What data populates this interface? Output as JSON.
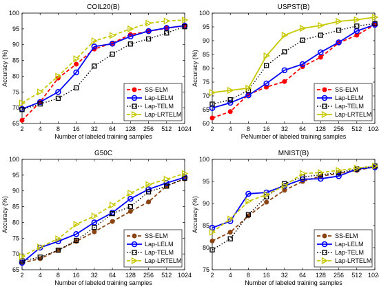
{
  "chart_data": [
    {
      "type": "line",
      "title": "COIL20(B)",
      "xlabel": "Number of labeled training samples",
      "ylabel": "Accuracy (%)",
      "categories": [
        "2",
        "4",
        "8",
        "16",
        "32",
        "64",
        "128",
        "256",
        "512",
        "1024"
      ],
      "ylim": [
        65,
        100
      ],
      "yticks": [
        65,
        70,
        75,
        80,
        85,
        90,
        95,
        100
      ],
      "legend_position": "lower-right",
      "series": [
        {
          "name": "SS-ELM",
          "color": "#ff0000",
          "dash": "dashed",
          "marker": "dot",
          "values": [
            66,
            71.8,
            79.4,
            83.8,
            88.6,
            90.5,
            93.2,
            94.2,
            95.2,
            96
          ]
        },
        {
          "name": "Lap-LELM",
          "color": "#0000ff",
          "dash": "solid",
          "marker": "circle",
          "values": [
            69.6,
            71.8,
            75,
            81.2,
            89.4,
            90.3,
            92.6,
            94.3,
            95.3,
            96
          ]
        },
        {
          "name": "Lap-TELM",
          "color": "#000000",
          "dash": "dotted",
          "marker": "square",
          "values": [
            69.4,
            71.2,
            73,
            76.3,
            83.2,
            87,
            90.2,
            91.8,
            93.7,
            95.7
          ]
        },
        {
          "name": "Lap-LRTELM",
          "color": "#c8c800",
          "dash": "dashed",
          "marker": "triangle",
          "values": [
            71.5,
            75,
            80,
            85.5,
            91.2,
            92.9,
            95,
            96.8,
            97.5,
            97.8
          ]
        }
      ]
    },
    {
      "type": "line",
      "title": "USPST(B)",
      "xlabel": "PeNumber of labeled training samples",
      "ylabel": "Accuracy (%)",
      "categories": [
        "2",
        "4",
        "8",
        "16",
        "32",
        "64",
        "128",
        "256",
        "512",
        "1024"
      ],
      "ylim": [
        60,
        100
      ],
      "yticks": [
        60,
        65,
        70,
        75,
        80,
        85,
        90,
        95,
        100
      ],
      "legend_position": "lower-right",
      "series": [
        {
          "name": "SS-ELM",
          "color": "#ff0000",
          "dash": "dashed",
          "marker": "dot",
          "values": [
            62,
            64.3,
            70.5,
            73.2,
            75.2,
            80.6,
            84,
            89.2,
            92,
            95.8
          ]
        },
        {
          "name": "Lap-LELM",
          "color": "#0000ff",
          "dash": "solid",
          "marker": "circle",
          "values": [
            65.6,
            67.5,
            70.2,
            74.5,
            79.3,
            81.5,
            85.8,
            89.4,
            93.5,
            95.8
          ]
        },
        {
          "name": "Lap-TELM",
          "color": "#000000",
          "dash": "dotted",
          "marker": "square",
          "values": [
            67,
            68.6,
            72,
            81,
            86,
            90.2,
            92,
            93.8,
            95.3,
            96.2
          ]
        },
        {
          "name": "Lap-LRTELM",
          "color": "#c8c800",
          "dash": "solid",
          "marker": "triangle",
          "values": [
            71.2,
            72,
            72.8,
            84.5,
            92,
            94.5,
            95.5,
            97,
            97.6,
            98.5
          ]
        }
      ]
    },
    {
      "type": "line",
      "title": "G50C",
      "xlabel": "Number of labeled training samples",
      "ylabel": "Accuracy (%)",
      "categories": [
        "2",
        "4",
        "8",
        "16",
        "32",
        "64",
        "128",
        "256",
        "512",
        "1024"
      ],
      "ylim": [
        65,
        100
      ],
      "yticks": [
        65,
        70,
        75,
        80,
        85,
        90,
        95,
        100
      ],
      "legend_position": "lower-right",
      "series": [
        {
          "name": "SS-ELM",
          "color": "#8b4513",
          "dash": "dashed",
          "marker": "dot",
          "values": [
            67.2,
            68.5,
            71.2,
            74,
            77,
            80.3,
            83.5,
            86.5,
            91.6,
            93.8
          ]
        },
        {
          "name": "Lap-LELM",
          "color": "#0000ff",
          "dash": "solid",
          "marker": "circle",
          "values": [
            67.2,
            72,
            74,
            76.3,
            80,
            83.1,
            87.5,
            90.5,
            92.5,
            94.3
          ]
        },
        {
          "name": "Lap-TELM",
          "color": "#000000",
          "dash": "dotted",
          "marker": "square",
          "values": [
            67.8,
            69,
            71.2,
            74.3,
            78.4,
            82.8,
            85,
            89.7,
            91.5,
            94
          ]
        },
        {
          "name": "Lap-LRTELM",
          "color": "#c8c800",
          "dash": "dashed",
          "marker": "triangle",
          "values": [
            69.2,
            72.2,
            74.8,
            79.4,
            82,
            85.5,
            89.3,
            92,
            93.7,
            95.5
          ]
        }
      ]
    },
    {
      "type": "line",
      "title": "MNIST(B)",
      "xlabel": "Number of labeled training samples",
      "ylabel": "Accuracy (%)",
      "categories": [
        "2",
        "4",
        "8",
        "16",
        "32",
        "64",
        "128",
        "256",
        "512",
        "1024"
      ],
      "ylim": [
        75,
        100
      ],
      "yticks": [
        75,
        80,
        85,
        90,
        95,
        100
      ],
      "legend_position": "lower-right",
      "series": [
        {
          "name": "SS-ELM",
          "color": "#8b4513",
          "dash": "dashed",
          "marker": "dot",
          "values": [
            81.5,
            83.5,
            87.2,
            90.3,
            93,
            95,
            96.2,
            96.8,
            97.5,
            98.3
          ]
        },
        {
          "name": "Lap-LELM",
          "color": "#0000ff",
          "dash": "solid",
          "marker": "circle",
          "values": [
            84.5,
            86,
            92.2,
            92.5,
            94,
            95.5,
            95.6,
            96.2,
            97.8,
            98.2
          ]
        },
        {
          "name": "Lap-TELM",
          "color": "#000000",
          "dash": "dotted",
          "marker": "square",
          "values": [
            79.5,
            82,
            87.5,
            91.5,
            94.5,
            96,
            96.5,
            97,
            97.8,
            98.5
          ]
        },
        {
          "name": "Lap-LRTELM",
          "color": "#c8c800",
          "dash": "dashed",
          "marker": "triangle",
          "values": [
            83.5,
            86.5,
            90.5,
            92,
            94,
            96.8,
            97,
            97.5,
            98,
            98.5
          ]
        }
      ]
    }
  ]
}
